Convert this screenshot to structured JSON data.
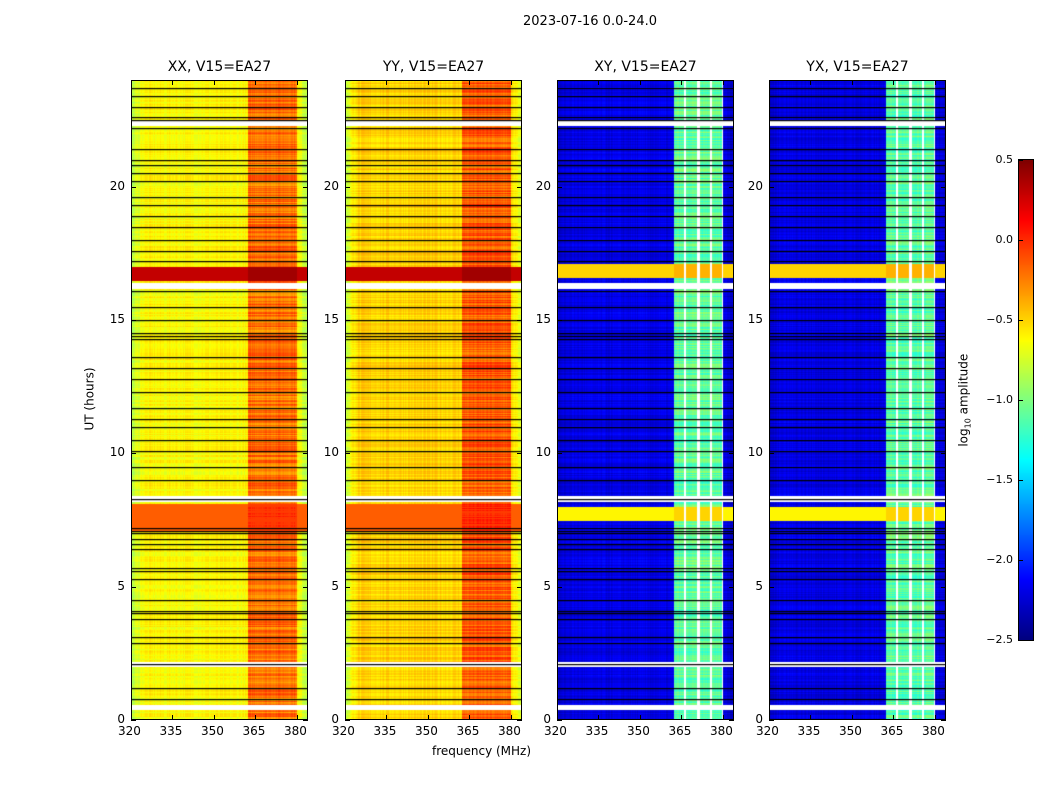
{
  "chart_data": {
    "type": "heatmap",
    "title": "2023-07-16 0.0-24.0",
    "xlabel": "frequency (MHz)",
    "ylabel": "UT (hours)",
    "xlim": [
      320,
      384
    ],
    "ylim": [
      0,
      24
    ],
    "xticks": [
      "320",
      "335",
      "350",
      "365",
      "380"
    ],
    "yticks": [
      "0",
      "5",
      "10",
      "15",
      "20"
    ],
    "colormap": "jet",
    "colorbar": {
      "label": "log10 amplitude",
      "label_main": "log",
      "label_sub": "10",
      "label_rest": " amplitude",
      "range": [
        -2.5,
        0.5
      ],
      "ticks": [
        "0.5",
        "0.0",
        "−0.5",
        "−1.0",
        "−1.5",
        "−2.0",
        "−2.5"
      ]
    },
    "flagged_hours": [
      [
        0.4,
        0.6
      ],
      [
        2.0,
        2.2
      ],
      [
        8.2,
        8.4
      ],
      [
        16.2,
        16.4
      ],
      [
        22.3,
        22.5
      ]
    ],
    "black_line_hours": [
      0.8,
      1.2,
      2.1,
      2.9,
      3.1,
      3.8,
      4.0,
      4.1,
      4.5,
      5.3,
      5.6,
      5.7,
      6.4,
      6.6,
      6.8,
      7.0,
      7.1,
      7.2,
      8.3,
      9.0,
      9.5,
      10.1,
      10.5,
      11.0,
      11.3,
      11.7,
      12.3,
      12.8,
      13.2,
      13.6,
      14.3,
      14.4,
      14.5,
      15.0,
      15.5,
      16.1,
      17.2,
      17.6,
      18.0,
      18.5,
      18.9,
      19.3,
      19.6,
      20.2,
      20.5,
      20.8,
      21.0,
      21.4,
      22.2,
      22.5,
      22.6,
      23.0,
      23.4,
      23.7
    ],
    "panels": [
      {
        "title": "XX, V15=EA27",
        "base": -0.62,
        "edge": -0.85,
        "band": -0.2,
        "band_range": [
          362,
          380
        ],
        "hot_rows": [
          [
            16.5,
            17.0,
            0.3
          ],
          [
            7.1,
            8.1,
            -0.15
          ]
        ]
      },
      {
        "title": "YY, V15=EA27",
        "base": -0.5,
        "edge": -0.8,
        "band": -0.15,
        "band_range": [
          362,
          380
        ],
        "hot_rows": [
          [
            16.5,
            17.0,
            0.3
          ],
          [
            7.1,
            8.1,
            -0.15
          ]
        ]
      },
      {
        "title": "XY, V15=EA27",
        "base": -2.2,
        "edge": -2.3,
        "band": -1.1,
        "band_range": [
          362,
          380
        ],
        "hot_rows": [
          [
            16.6,
            17.1,
            -0.5
          ],
          [
            7.5,
            8.0,
            -0.6
          ]
        ]
      },
      {
        "title": "YX, V15=EA27",
        "base": -2.2,
        "edge": -2.3,
        "band": -1.1,
        "band_range": [
          362,
          380
        ],
        "hot_rows": [
          [
            16.6,
            17.1,
            -0.5
          ],
          [
            7.5,
            8.0,
            -0.6
          ]
        ]
      }
    ],
    "subband_gaps_mhz": [
      366,
      371,
      375.5,
      379.8
    ]
  }
}
